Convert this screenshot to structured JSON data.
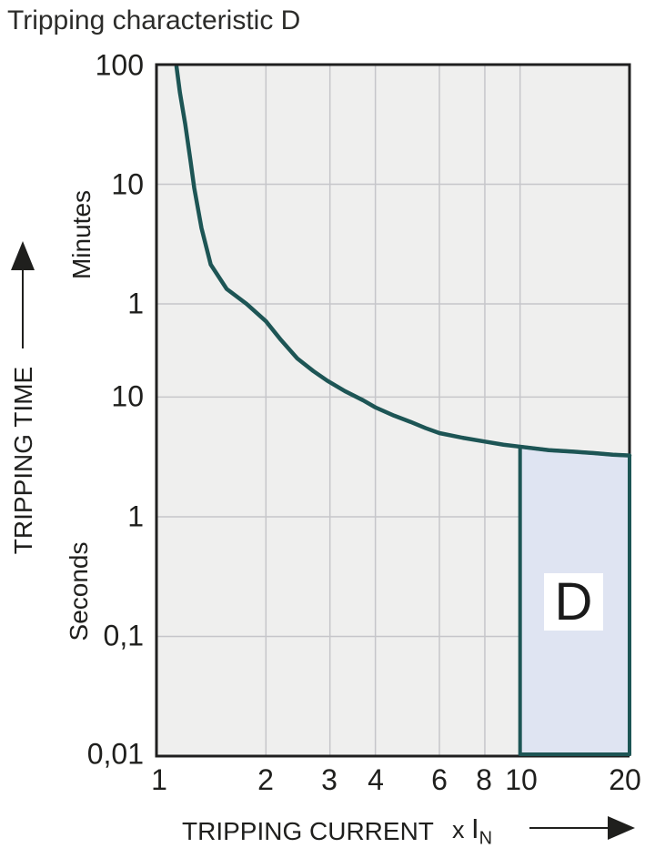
{
  "title": "Tripping characteristic D",
  "chart_data": {
    "type": "line",
    "title": "Tripping characteristic D",
    "x_axis": {
      "label": "TRIPPING CURRENT",
      "unit": {
        "x": "x",
        "base": "I",
        "sub": "N"
      },
      "scale": "log",
      "min": 1,
      "max": 20,
      "ticks": [
        "1",
        "2",
        "3",
        "4",
        "6",
        "8",
        "10",
        "20"
      ],
      "tick_values": [
        1,
        2,
        3,
        4,
        6,
        8,
        10,
        20
      ]
    },
    "y_axis": {
      "label": "TRIPPING TIME",
      "scale": "log",
      "units": [
        {
          "name": "Minutes"
        },
        {
          "name": "Seconds"
        }
      ],
      "ticks": [
        {
          "label": "100",
          "seconds": 6000,
          "unit": "minutes"
        },
        {
          "label": "10",
          "seconds": 600,
          "unit": "minutes"
        },
        {
          "label": "1",
          "seconds": 60,
          "unit": "minutes"
        },
        {
          "label": "10",
          "seconds": 10,
          "unit": "seconds"
        },
        {
          "label": "1",
          "seconds": 1,
          "unit": "seconds"
        },
        {
          "label": "0,1",
          "seconds": 0.1,
          "unit": "seconds"
        },
        {
          "label": "0,01",
          "seconds": 0.01,
          "unit": "seconds"
        }
      ],
      "min_seconds": 0.01,
      "max_seconds": 6000
    },
    "series": [
      {
        "name": "Tripping characteristic D curve",
        "points": [
          [
            1.135,
            5800
          ],
          [
            1.16,
            3500
          ],
          [
            1.2,
            1900
          ],
          [
            1.24,
            950
          ],
          [
            1.27,
            560
          ],
          [
            1.33,
            258
          ],
          [
            1.41,
            128
          ],
          [
            1.56,
            80
          ],
          [
            1.77,
            60
          ],
          [
            2.0,
            43
          ],
          [
            2.2,
            30
          ],
          [
            2.44,
            21
          ],
          [
            2.7,
            16.5
          ],
          [
            2.95,
            13.7
          ],
          [
            3.3,
            11.2
          ],
          [
            3.7,
            9.4
          ],
          [
            4.0,
            8.2
          ],
          [
            4.5,
            7.0
          ],
          [
            5.0,
            6.2
          ],
          [
            5.5,
            5.5
          ],
          [
            6.0,
            5.0
          ],
          [
            7.0,
            4.55
          ],
          [
            8.0,
            4.25
          ],
          [
            9.0,
            4.0
          ],
          [
            10.0,
            3.85
          ],
          [
            12,
            3.6
          ],
          [
            14,
            3.5
          ],
          [
            16,
            3.4
          ],
          [
            18,
            3.3
          ],
          [
            20,
            3.25
          ]
        ]
      }
    ],
    "region": {
      "label": "D",
      "x_start": 10,
      "x_end": 20
    },
    "colors": {
      "curve": "#1d5555",
      "region_fill": "#dfe4f2",
      "region_stroke": "#1d5555",
      "plot_bg": "#efefee",
      "grid": "#c6c6ca",
      "border": "#1f1f1f",
      "text": "#1f1f1d"
    }
  }
}
